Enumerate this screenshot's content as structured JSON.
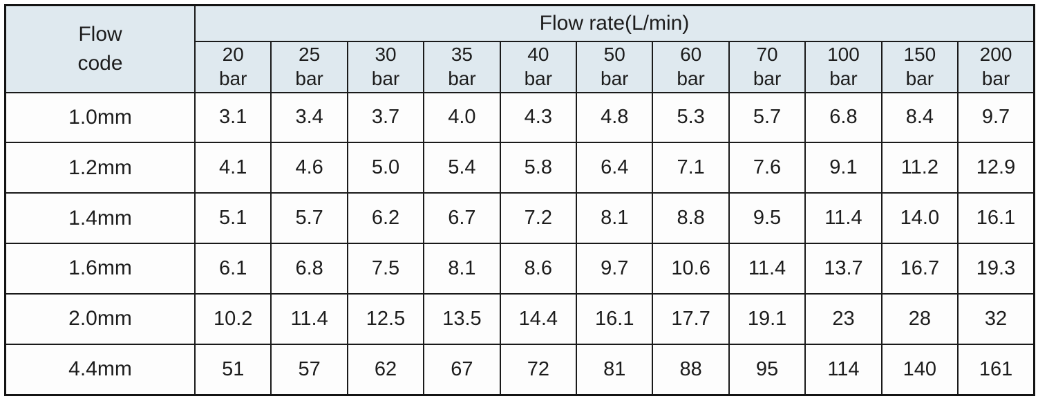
{
  "table": {
    "corner_header_line1": "Flow",
    "corner_header_line2": "code",
    "group_header": "Flow rate(L/min)",
    "column_unit": "bar",
    "columns": [
      "20",
      "25",
      "30",
      "35",
      "40",
      "50",
      "60",
      "70",
      "100",
      "150",
      "200"
    ],
    "rows": [
      {
        "label": "1.0mm",
        "values": [
          "3.1",
          "3.4",
          "3.7",
          "4.0",
          "4.3",
          "4.8",
          "5.3",
          "5.7",
          "6.8",
          "8.4",
          "9.7"
        ]
      },
      {
        "label": "1.2mm",
        "values": [
          "4.1",
          "4.6",
          "5.0",
          "5.4",
          "5.8",
          "6.4",
          "7.1",
          "7.6",
          "9.1",
          "11.2",
          "12.9"
        ]
      },
      {
        "label": "1.4mm",
        "values": [
          "5.1",
          "5.7",
          "6.2",
          "6.7",
          "7.2",
          "8.1",
          "8.8",
          "9.5",
          "11.4",
          "14.0",
          "16.1"
        ]
      },
      {
        "label": "1.6mm",
        "values": [
          "6.1",
          "6.8",
          "7.5",
          "8.1",
          "8.6",
          "9.7",
          "10.6",
          "11.4",
          "13.7",
          "16.7",
          "19.3"
        ]
      },
      {
        "label": "2.0mm",
        "values": [
          "10.2",
          "11.4",
          "12.5",
          "13.5",
          "14.4",
          "16.1",
          "17.7",
          "19.1",
          "23",
          "28",
          "32"
        ]
      },
      {
        "label": "4.4mm",
        "values": [
          "51",
          "57",
          "62",
          "67",
          "72",
          "81",
          "88",
          "95",
          "114",
          "140",
          "161"
        ]
      }
    ]
  },
  "colors": {
    "header_background": "#dfe9ef",
    "cell_background": "#fdfdfd",
    "grid_border": "#1a1a1a",
    "text": "#1c1c1c"
  },
  "chart_data": {
    "type": "table",
    "title": "Flow rate(L/min)",
    "row_header": "Flow code",
    "column_header_unit": "bar",
    "columns_bar": [
      20,
      25,
      30,
      35,
      40,
      50,
      60,
      70,
      100,
      150,
      200
    ],
    "rows": [
      {
        "flow_code": "1.0mm",
        "values": [
          3.1,
          3.4,
          3.7,
          4.0,
          4.3,
          4.8,
          5.3,
          5.7,
          6.8,
          8.4,
          9.7
        ]
      },
      {
        "flow_code": "1.2mm",
        "values": [
          4.1,
          4.6,
          5.0,
          5.4,
          5.8,
          6.4,
          7.1,
          7.6,
          9.1,
          11.2,
          12.9
        ]
      },
      {
        "flow_code": "1.4mm",
        "values": [
          5.1,
          5.7,
          6.2,
          6.7,
          7.2,
          8.1,
          8.8,
          9.5,
          11.4,
          14.0,
          16.1
        ]
      },
      {
        "flow_code": "1.6mm",
        "values": [
          6.1,
          6.8,
          7.5,
          8.1,
          8.6,
          9.7,
          10.6,
          11.4,
          13.7,
          16.7,
          19.3
        ]
      },
      {
        "flow_code": "2.0mm",
        "values": [
          10.2,
          11.4,
          12.5,
          13.5,
          14.4,
          16.1,
          17.7,
          19.1,
          23,
          28,
          32
        ]
      },
      {
        "flow_code": "4.4mm",
        "values": [
          51,
          57,
          62,
          67,
          72,
          81,
          88,
          95,
          114,
          140,
          161
        ]
      }
    ]
  }
}
